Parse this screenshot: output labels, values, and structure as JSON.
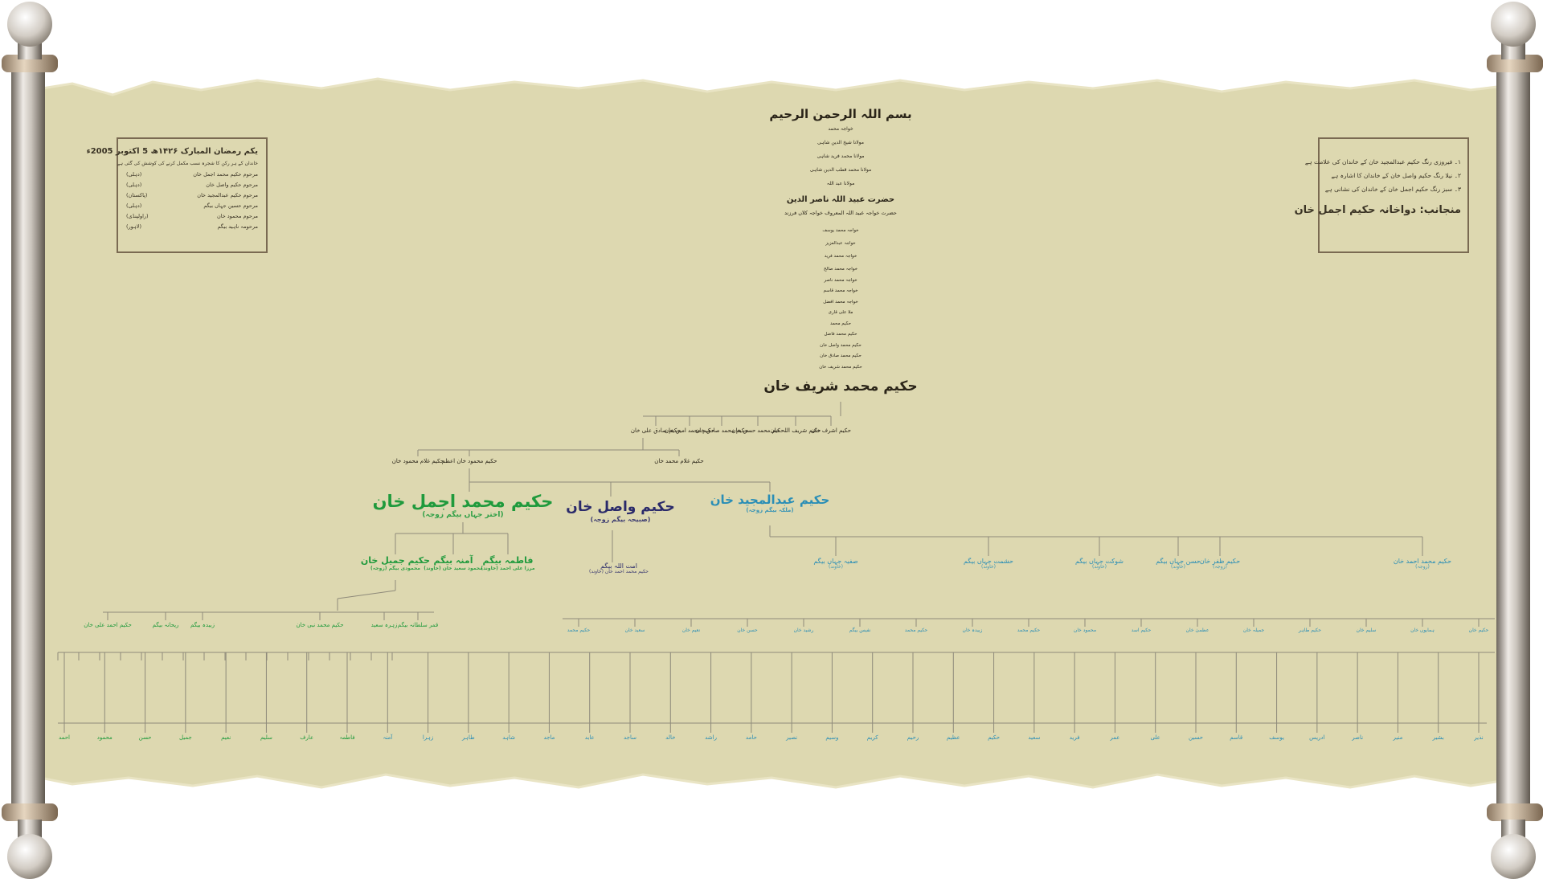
{
  "colors": {
    "parchment": "#ddd8b0",
    "parchment_edge": "#e9e4c4",
    "line": "#8e8a7a",
    "ink_dark": "#2a2418",
    "green": "#1f9a3c",
    "navy": "#2a2a6a",
    "teal": "#2a8eb6",
    "box_border": "#7a6a52",
    "roller_light": "#e6e2dc",
    "roller_dark": "#7e766c",
    "roller_cap": "#cbb8a0"
  },
  "left_box": {
    "title": "یکم رمضان المبارک ۱۴۲۶ھ 5 اکتوبر 2005ء",
    "intro": "خاندان کے ہر رکن کا شجرہ نسب مکمل کرنے کی کوشش کی گئی ہے",
    "rows": [
      {
        "name": "مرحوم حکیم محمد اجمل خان",
        "note": "(دہلی)"
      },
      {
        "name": "مرحوم حکیم واصل خان",
        "note": "(دہلی)"
      },
      {
        "name": "مرحوم حکیم عبدالمجید خان",
        "note": "(پاکستان)"
      },
      {
        "name": "مرحوم حسین جہاں بیگم",
        "note": "(دہلی)"
      },
      {
        "name": "مرحوم محمود خان",
        "note": "(راولپنڈی)"
      },
      {
        "name": "مرحومہ ناہید بیگم",
        "note": "(لاہور)"
      }
    ]
  },
  "right_box": {
    "items": [
      "۱۔ فیروزی رنگ حکیم عبدالمجید خان کے خاندان کی علامت ہے",
      "۲۔ نیلا رنگ حکیم واصل خان کے خاندان کا اشارہ ہے",
      "۳۔ سبز رنگ حکیم اجمل خان کے خاندان کی نشانی ہے"
    ],
    "footer": "منجانب: دواخانہ حکیم اجمل خان"
  },
  "header": {
    "bismillah": "بسم اللہ الرحمن الرحیم",
    "chain_top": [
      "خواجہ محمد",
      "مولانا شیخ الدین شاہی",
      "مولانا محمد فرید شاہی",
      "مولانا محمد قطب الدین شاہی",
      "مولانا عبد اللہ"
    ],
    "saint": "حضرت عبید اللہ ناصر الدین",
    "saint_note": "حضرت خواجہ عبید اللہ المعروف خواجہ کلاں فرزند"
  },
  "chain_names": [
    "خواجہ محمد یوسف",
    "خواجہ عبدالعزیز",
    "خواجہ محمد فرید",
    "خواجہ محمد صالح",
    "خواجہ محمد ناصر",
    "خواجہ محمد قاسم",
    "خواجہ محمد افضل",
    "ملا علی قاری",
    "حکیم محمد",
    "حکیم محمد فاضل",
    "حکیم محمد واصل خان",
    "حکیم محمد صادق خان",
    "حکیم محمد شریف خان"
  ],
  "patriarch": "حکیم محمد شریف خان",
  "gen1": [
    "حکیم اشرف خان",
    "حکیم شریف اللہ خان",
    "حکیم محمد حسن خان",
    "حکیم محمد صادق خان",
    "حکیم محمد امین خان",
    "حکیم صادق علی خان"
  ],
  "gen2": [
    "حکیم غلام محمود خان",
    "حکیم محمود خان اعظم",
    "حکیم غلام محمد خان"
  ],
  "main": {
    "ajmal": {
      "name": "حکیم محمد اجمل خان",
      "sub": "(اختر جہاں بیگم زوجہ)"
    },
    "wasil": {
      "name": "حکیم واصل خان",
      "sub": "(صبیحہ بیگم زوجہ)"
    },
    "majeed": {
      "name": "حکیم عبدالمجید خان",
      "sub": "(ملکہ بیگم زوجہ)"
    }
  },
  "ajmal_children": [
    {
      "name": "فاطمہ بیگم",
      "sub": "مرزا علی احمد (خاوند)"
    },
    {
      "name": "آمنہ بیگم",
      "sub": "محمود سعید خان (خاوند)"
    },
    {
      "name": "حکیم جمیل خان",
      "sub": "محمودی بیگم (زوجہ)"
    }
  ],
  "wasil_child": {
    "name": "امت اللہ بیگم",
    "sub": "حکیم محمد احمد خان (خاوند)"
  },
  "majeed_children": [
    {
      "name": "صفیہ جہاں بیگم",
      "sub": "(خاوند)"
    },
    {
      "name": "حشمت جہاں بیگم",
      "sub": "(خاوند)"
    },
    {
      "name": "شوکت جہاں بیگم",
      "sub": "(خاوند)"
    },
    {
      "name": "حسن جہاں بیگم",
      "sub": "(خاوند)"
    },
    {
      "name": "حکیم ظفر خان",
      "sub": "(زوجہ)"
    },
    {
      "name": "حکیم محمد احمد خان",
      "sub": "(زوجہ)"
    }
  ],
  "green_gen4": [
    "حکیم احمد علی خان",
    "ریحانہ بیگم",
    "زبیدہ بیگم",
    "حکیم محمد نبی خان",
    "زہرہ سعید",
    "قمر سلطانہ بیگم"
  ],
  "teal_gen4": [
    "حکیم محمد",
    "سعید خان",
    "نعیم خان",
    "حسن خان",
    "رشید خان",
    "نفیس بیگم",
    "حکیم محمد",
    "زبیدہ خان",
    "حکیم محمد",
    "محمود خان",
    "حکیم اسد",
    "عظمیٰ خان",
    "جمیلہ خان",
    "حکیم طاہر",
    "سلیم خان",
    "ہمایوں خان",
    "حکیم خان"
  ],
  "bottom_names": [
    "احمد",
    "محمود",
    "حسن",
    "جمیل",
    "نعیم",
    "سلیم",
    "عارف",
    "فاطمہ",
    "آمنہ",
    "زہرا",
    "طاہر",
    "شاہد",
    "ماجد",
    "عابد",
    "ساجد",
    "خالد",
    "راشد",
    "حامد",
    "نصیر",
    "وسیم",
    "کریم",
    "رحیم",
    "عظیم",
    "حکیم",
    "سعید",
    "فرید",
    "عمر",
    "علی",
    "حسین",
    "قاسم",
    "یوسف",
    "ادریس",
    "ناصر",
    "منیر",
    "بشیر",
    "نذیر"
  ]
}
